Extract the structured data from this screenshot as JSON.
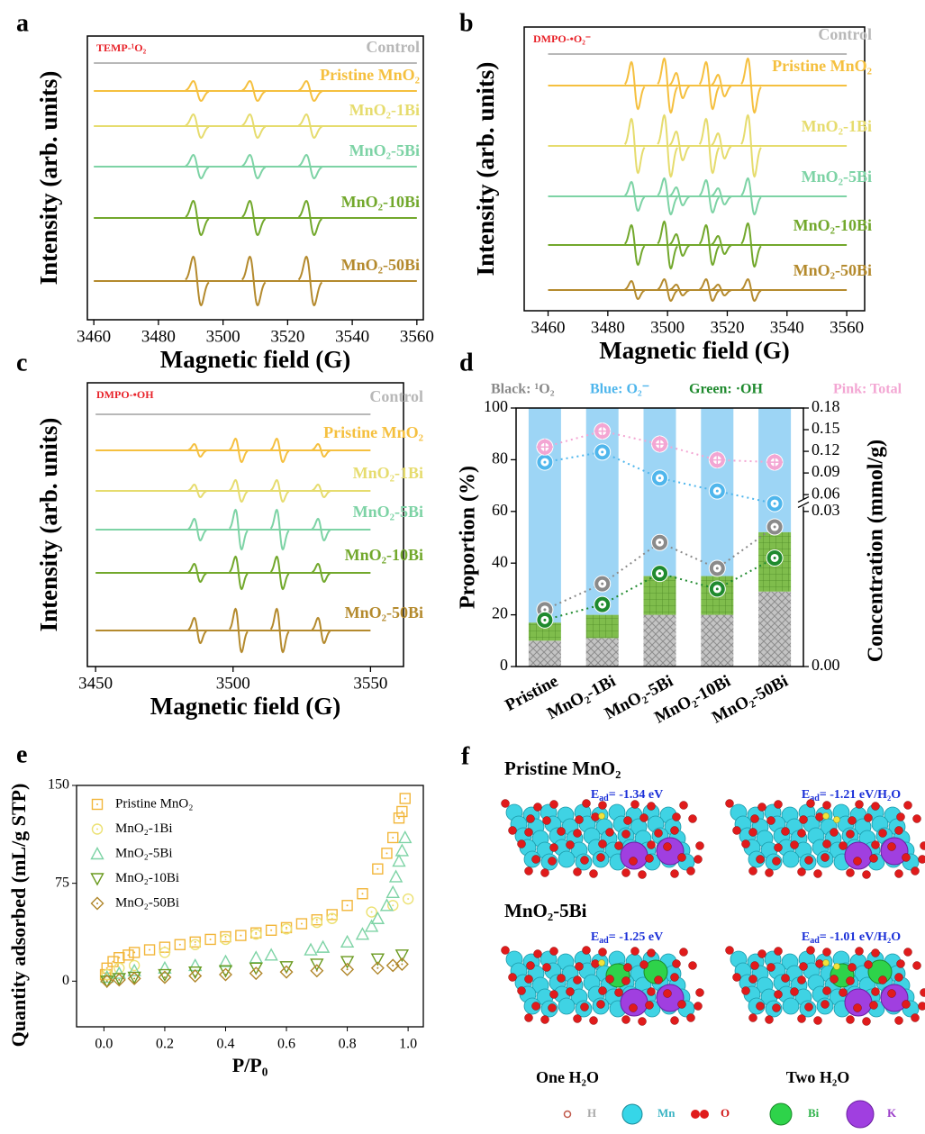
{
  "chart_data": [
    {
      "type": "spectra",
      "panel_label": "a",
      "annotation": "TEMP-¹O₂",
      "xlabel": "Magnetic field (G)",
      "ylabel": "Intensity (arb. units)",
      "xlim": [
        3458,
        3562
      ],
      "xticks": [
        3460,
        3480,
        3500,
        3520,
        3540,
        3560
      ],
      "series": [
        {
          "name": "Control",
          "color": "#b8b8b8"
        },
        {
          "name": "Pristine MnO₂",
          "color": "#f5c03f",
          "peaks": [
            3492,
            3509.5,
            3527
          ],
          "amplitudes": [
            11,
            11,
            11
          ]
        },
        {
          "name": "MnO₂-1Bi",
          "color": "#e6dc6e",
          "peaks": [
            3492,
            3509.5,
            3527
          ],
          "amplitudes": [
            13,
            13,
            13
          ]
        },
        {
          "name": "MnO₂-5Bi",
          "color": "#7dd3a5",
          "peaks": [
            3492,
            3509.5,
            3527
          ],
          "amplitudes": [
            13,
            13,
            13
          ]
        },
        {
          "name": "MnO₂-10Bi",
          "color": "#72a82c",
          "peaks": [
            3492,
            3509.5,
            3527
          ],
          "amplitudes": [
            19,
            19,
            19
          ]
        },
        {
          "name": "MnO₂-50Bi",
          "color": "#b48a2d",
          "peaks": [
            3492,
            3509.5,
            3527
          ],
          "amplitudes": [
            27,
            27,
            27
          ]
        }
      ]
    },
    {
      "type": "spectra",
      "panel_label": "b",
      "annotation": "DMPO-•O₂⁻",
      "xlabel": "Magnetic field (G)",
      "ylabel": "Intensity (arb. units)",
      "xlim": [
        3452,
        3566
      ],
      "xticks": [
        3460,
        3480,
        3500,
        3520,
        3540,
        3560
      ],
      "series": [
        {
          "name": "Control",
          "color": "#b8b8b8"
        },
        {
          "name": "Pristine MnO₂",
          "color": "#f5c03f",
          "peaks": [
            3489,
            3500,
            3504,
            3514,
            3518,
            3528
          ],
          "amplitudes": [
            26,
            30,
            14,
            26,
            12,
            30
          ]
        },
        {
          "name": "MnO₂-1Bi",
          "color": "#e6dc6e",
          "peaks": [
            3489,
            3500,
            3504,
            3514,
            3518,
            3528
          ],
          "amplitudes": [
            30,
            34,
            16,
            30,
            14,
            34
          ]
        },
        {
          "name": "MnO₂-5Bi",
          "color": "#7dd3a5",
          "peaks": [
            3489,
            3500,
            3504,
            3514,
            3518,
            3528
          ],
          "amplitudes": [
            16,
            20,
            10,
            18,
            9,
            20
          ]
        },
        {
          "name": "MnO₂-10Bi",
          "color": "#72a82c",
          "peaks": [
            3489,
            3500,
            3504,
            3514,
            3518,
            3528
          ],
          "amplitudes": [
            22,
            26,
            12,
            22,
            10,
            24
          ]
        },
        {
          "name": "MnO₂-50Bi",
          "color": "#b48a2d",
          "peaks": [
            3489,
            3500,
            3504,
            3514,
            3518,
            3528
          ],
          "amplitudes": [
            10,
            12,
            6,
            12,
            6,
            12
          ]
        }
      ]
    },
    {
      "type": "spectra",
      "panel_label": "c",
      "annotation": "DMPO-•OH",
      "xlabel": "Magnetic field (G)",
      "ylabel": "Intensity (arb. units)",
      "xlim": [
        3447,
        3562
      ],
      "xticks": [
        3450,
        3500,
        3550
      ],
      "series": [
        {
          "name": "Control",
          "color": "#b8b8b8"
        },
        {
          "name": "Pristine MnO₂",
          "color": "#f5c03f",
          "peaks": [
            3487,
            3502,
            3517,
            3532
          ],
          "amplitudes": [
            7,
            13,
            13,
            7
          ]
        },
        {
          "name": "MnO₂-1Bi",
          "color": "#e6dc6e",
          "peaks": [
            3487,
            3502,
            3517,
            3532
          ],
          "amplitudes": [
            7,
            12,
            12,
            7
          ]
        },
        {
          "name": "MnO₂-5Bi",
          "color": "#7dd3a5",
          "peaks": [
            3487,
            3502,
            3517,
            3532
          ],
          "amplitudes": [
            12,
            22,
            22,
            12
          ]
        },
        {
          "name": "MnO₂-10Bi",
          "color": "#72a82c",
          "peaks": [
            3487,
            3502,
            3517,
            3532
          ],
          "amplitudes": [
            10,
            18,
            18,
            10
          ]
        },
        {
          "name": "MnO₂-50Bi",
          "color": "#b48a2d",
          "peaks": [
            3487,
            3502,
            3517,
            3532
          ],
          "amplitudes": [
            14,
            24,
            24,
            14
          ]
        }
      ]
    },
    {
      "type": "stacked_bar",
      "panel_label": "d",
      "ylabel": "Proportion (%)",
      "y2label": "Concentration (mmol/g)",
      "categories": [
        "Pristine",
        "MnO₂-1Bi",
        "MnO₂-5Bi",
        "MnO₂-10Bi",
        "MnO₂-50Bi"
      ],
      "ylim": [
        0,
        100
      ],
      "yticks": [
        0,
        20,
        40,
        60,
        80,
        100
      ],
      "y2lim": [
        0,
        0.18
      ],
      "y2ticks": [
        {
          "value": 0,
          "label": "0.00"
        },
        0.03,
        0.06,
        0.09,
        0.12,
        0.15,
        0.18
      ],
      "series": [
        {
          "name": "Black: ¹O₂",
          "color": "#c4c4c4",
          "point_color": "#8a8a8a",
          "values": [
            10,
            11,
            20,
            20,
            29
          ],
          "concentration": [
            0.011,
            0.016,
            0.024,
            0.019,
            0.027
          ]
        },
        {
          "name": "Green: ·OH",
          "color": "#7fbd4c",
          "point_color": "#1f8a2e",
          "values": [
            7,
            9,
            15,
            15,
            23
          ],
          "concentration": [
            0.009,
            0.012,
            0.018,
            0.015,
            0.021
          ]
        },
        {
          "name": "Blue: O₂⁻",
          "color": "#9dd5f5",
          "point_color": "#4fb6ec",
          "values": [
            83,
            80,
            65,
            65,
            48
          ],
          "concentration": [
            0.105,
            0.119,
            0.083,
            0.065,
            0.044
          ]
        },
        {
          "name": "Pink: Total",
          "point_color": "#f3a6d3",
          "concentration": [
            0.126,
            0.148,
            0.13,
            0.108,
            0.105
          ]
        }
      ]
    },
    {
      "type": "scatter",
      "panel_label": "e",
      "xlabel": "P/P₀",
      "ylabel": "Quantity adsorbed (mL/g STP)",
      "xlim": [
        -0.09,
        1.05
      ],
      "ylim": [
        -35,
        150
      ],
      "xticks": [
        {
          "value": 0,
          "label": "0.0"
        },
        0.2,
        0.4,
        0.6,
        0.8,
        {
          "value": 1,
          "label": "1.0"
        }
      ],
      "yticks": [
        0,
        75,
        150
      ],
      "series": [
        {
          "name": "Pristine MnO₂",
          "color": "#f2b63a",
          "marker": "square",
          "x": [
            0.005,
            0.01,
            0.03,
            0.05,
            0.08,
            0.1,
            0.15,
            0.2,
            0.25,
            0.3,
            0.35,
            0.4,
            0.45,
            0.5,
            0.55,
            0.6,
            0.65,
            0.7,
            0.75,
            0.8,
            0.85,
            0.9,
            0.93,
            0.95,
            0.97,
            0.98,
            0.99
          ],
          "y": [
            5,
            10,
            15,
            18,
            20,
            22,
            24,
            26,
            28,
            30,
            32,
            34,
            35,
            37,
            39,
            41,
            44,
            47,
            51,
            58,
            67,
            86,
            98,
            110,
            125,
            130,
            140
          ]
        },
        {
          "name": "MnO₂-1Bi",
          "color": "#ece172",
          "marker": "circle",
          "x": [
            0.01,
            0.05,
            0.1,
            0.2,
            0.3,
            0.4,
            0.5,
            0.6,
            0.7,
            0.75,
            0.88,
            0.95,
            1.0
          ],
          "y": [
            5,
            10,
            12,
            22,
            28,
            32,
            36,
            40,
            45,
            48,
            53,
            58,
            63
          ]
        },
        {
          "name": "MnO₂-5Bi",
          "color": "#7dd3a5",
          "marker": "triangle",
          "x": [
            0.01,
            0.05,
            0.1,
            0.2,
            0.3,
            0.4,
            0.5,
            0.55,
            0.68,
            0.72,
            0.8,
            0.85,
            0.88,
            0.9,
            0.93,
            0.95,
            0.96,
            0.97,
            0.98,
            0.99
          ],
          "y": [
            3,
            6,
            8,
            10,
            12,
            15,
            18,
            20,
            24,
            26,
            30,
            36,
            42,
            48,
            58,
            68,
            80,
            92,
            100,
            110
          ]
        },
        {
          "name": "MnO₂-10Bi",
          "color": "#6a9a1f",
          "marker": "triangle-down",
          "x": [
            0.01,
            0.05,
            0.1,
            0.2,
            0.3,
            0.4,
            0.5,
            0.6,
            0.7,
            0.8,
            0.9,
            0.98
          ],
          "y": [
            0,
            2,
            3,
            5,
            7,
            8,
            10,
            11,
            13,
            15,
            17,
            20
          ]
        },
        {
          "name": "MnO₂-50Bi",
          "color": "#b0862a",
          "marker": "diamond",
          "x": [
            0.01,
            0.05,
            0.1,
            0.2,
            0.3,
            0.4,
            0.5,
            0.6,
            0.7,
            0.8,
            0.9,
            0.95,
            0.98
          ],
          "y": [
            0,
            1,
            2,
            3,
            4,
            5,
            6,
            7,
            8,
            9,
            10,
            12,
            13
          ]
        }
      ]
    }
  ],
  "panel_f": {
    "panel_label": "f",
    "rows": [
      {
        "title": "Pristine MnO₂",
        "energies": [
          {
            "symbol": "E",
            "subscript": "ad",
            "value": "= -1.34 eV"
          },
          {
            "symbol": "E",
            "subscript": "ad",
            "value": "= -1.21 eV/H₂O"
          }
        ]
      },
      {
        "title": "MnO₂-5Bi",
        "energies": [
          {
            "symbol": "E",
            "subscript": "ad",
            "value": "= -1.25 eV"
          },
          {
            "symbol": "E",
            "subscript": "ad",
            "value": "= -1.01 eV/H₂O"
          }
        ]
      }
    ],
    "captions": [
      "One H₂O",
      "Two H₂O"
    ],
    "legend": [
      "H",
      "Mn",
      "O",
      "Bi",
      "K"
    ]
  }
}
